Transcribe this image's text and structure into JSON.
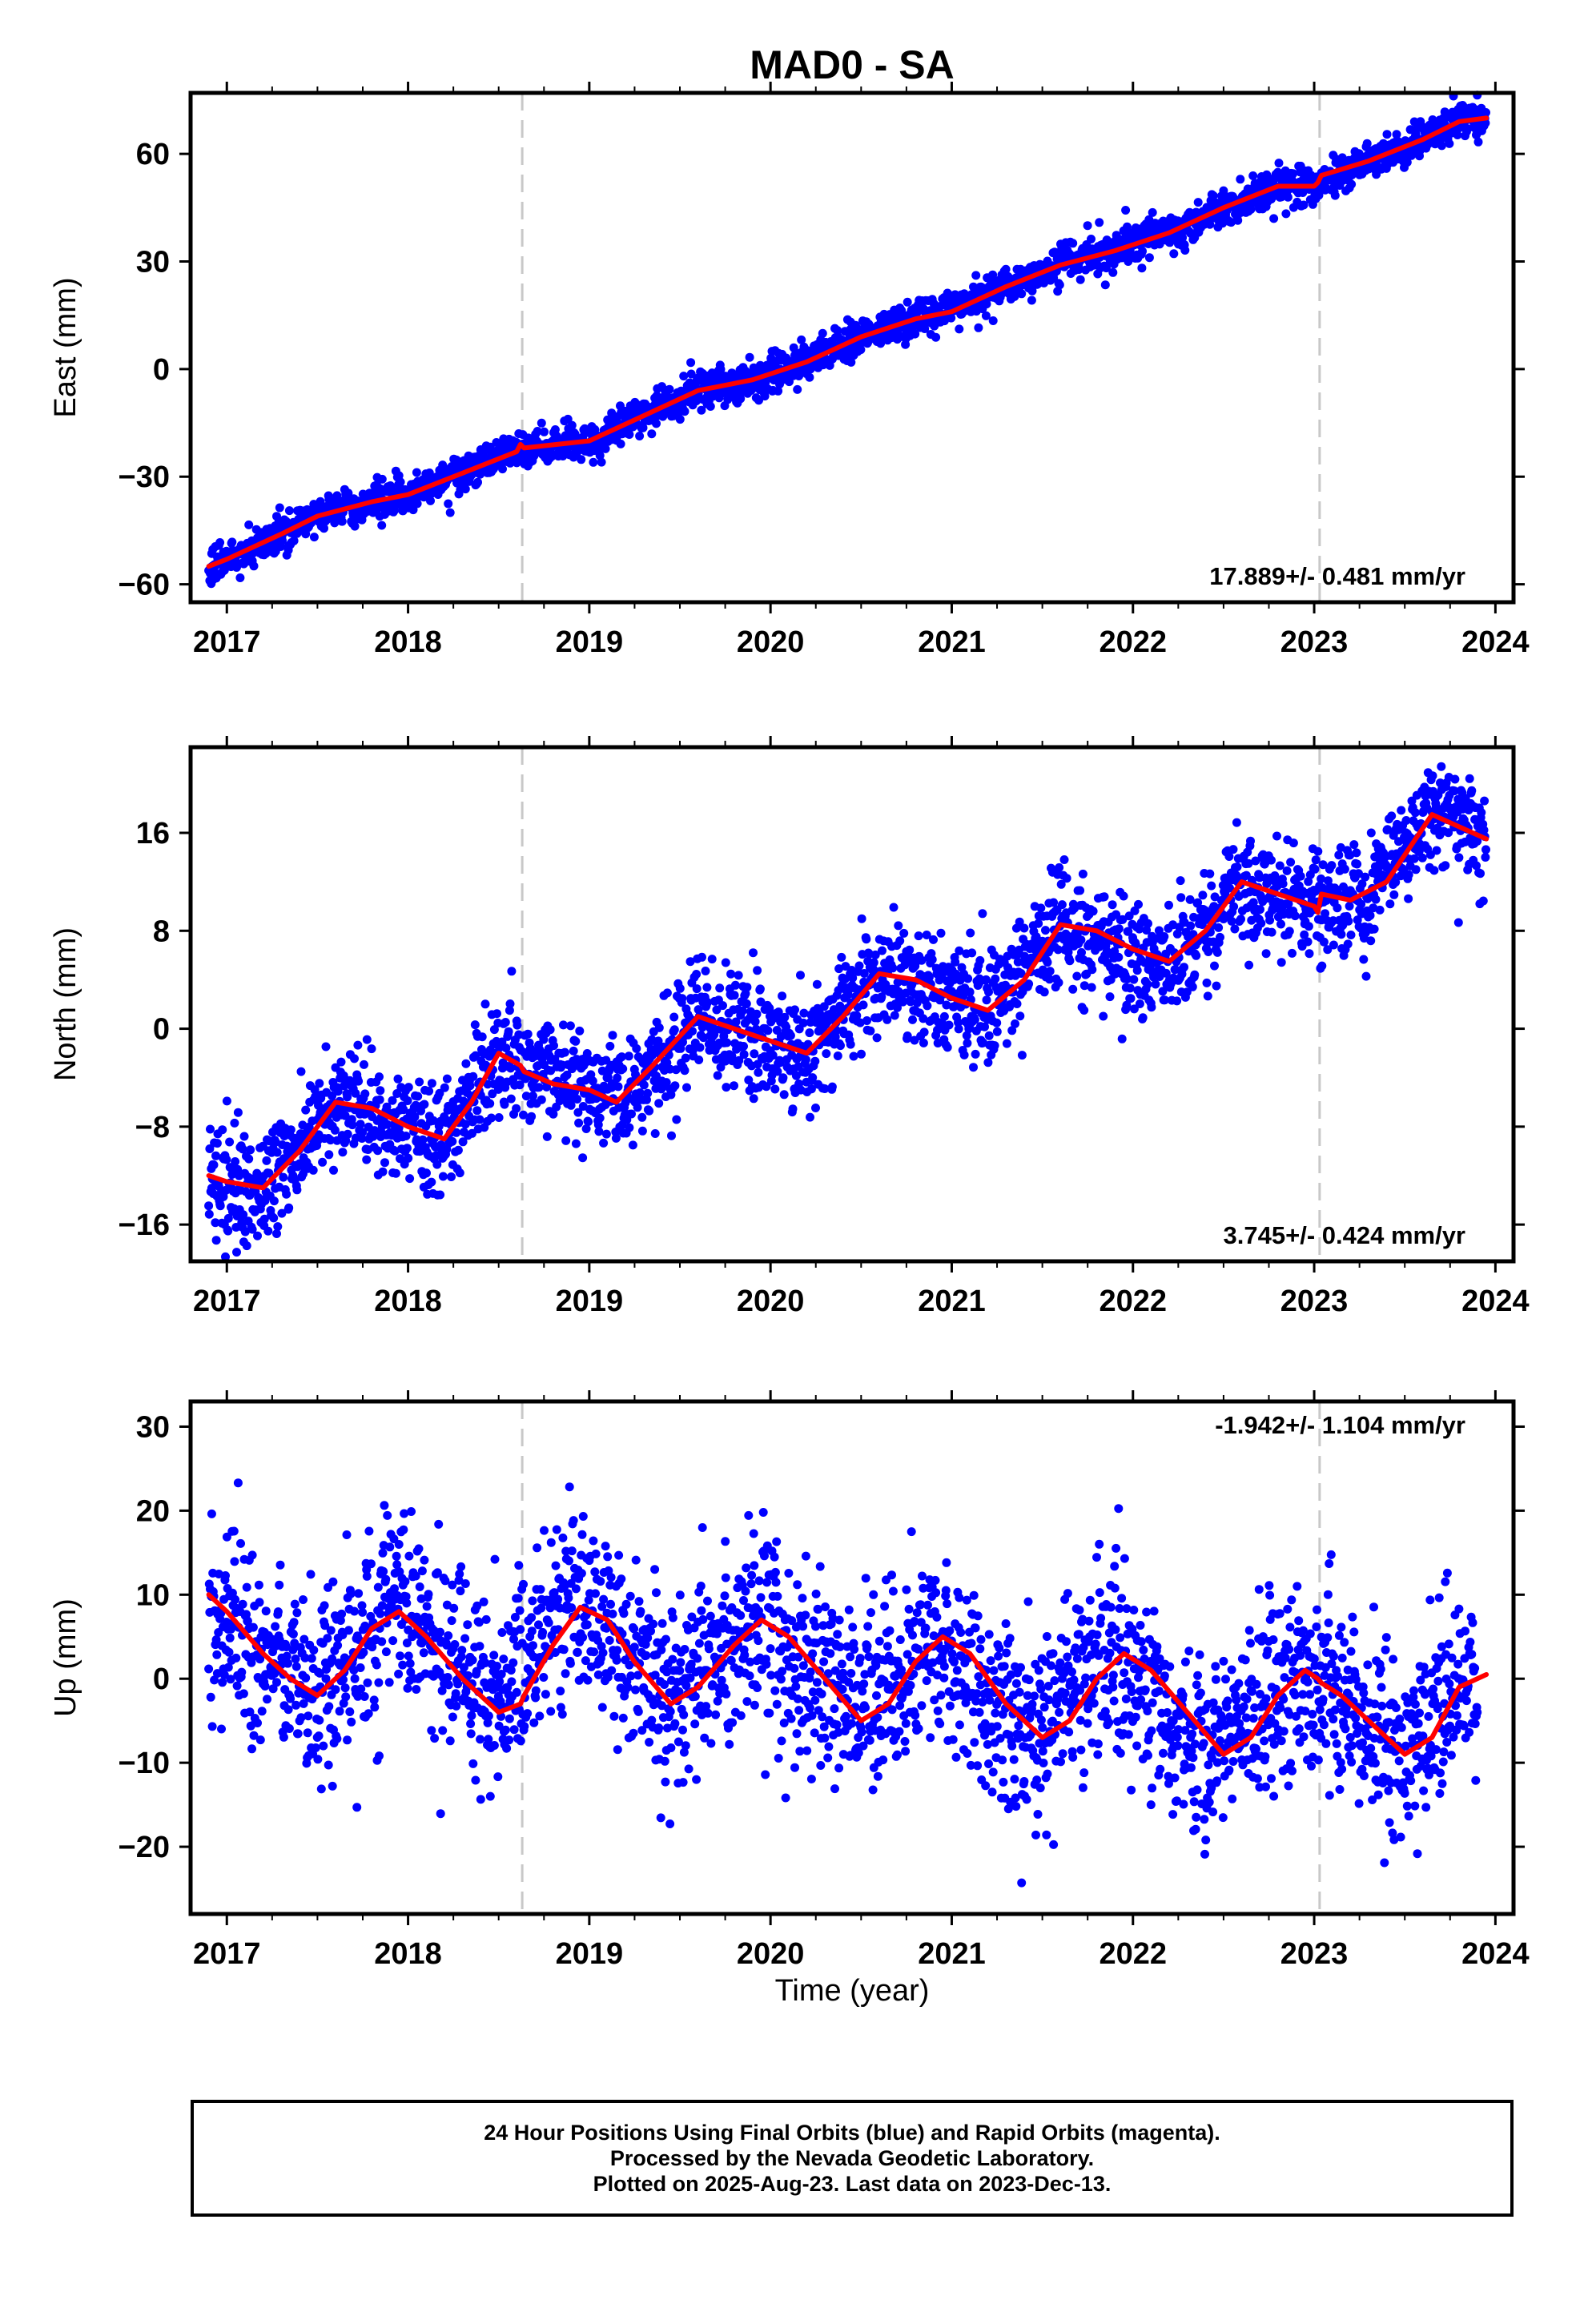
{
  "title": "MAD0 - SA",
  "colors": {
    "points": "#0000ff",
    "fit": "#ff0000",
    "dashed": "#c8c8c8",
    "axes": "#000000"
  },
  "xlabel": "Time (year)",
  "xlim": [
    2016.8,
    2024.1
  ],
  "xticks": [
    2017,
    2018,
    2019,
    2020,
    2021,
    2022,
    2023,
    2024
  ],
  "dashed_lines": [
    2018.63,
    2023.03
  ],
  "chart_data": [
    {
      "type": "scatter",
      "component": "east",
      "ylabel": "East (mm)",
      "ylim": [
        -65,
        77
      ],
      "yticks": [
        -60,
        -30,
        0,
        30,
        60
      ],
      "annotation": "17.889+/- 0.481 mm/yr",
      "annotation_pos": "bottom-right",
      "rate_mm_per_yr": 17.889,
      "rate_sigma": 0.481,
      "series": [
        {
          "name": "Final Orbits",
          "style": "points",
          "x": [
            2016.9,
            2017.0,
            2017.3,
            2017.5,
            2017.8,
            2018.0,
            2018.3,
            2018.6,
            2018.7,
            2019.0,
            2019.3,
            2019.6,
            2019.9,
            2020.2,
            2020.5,
            2020.8,
            2021.0,
            2021.3,
            2021.6,
            2021.9,
            2022.2,
            2022.5,
            2022.8,
            2023.0,
            2023.3,
            2023.6,
            2023.8,
            2023.95
          ],
          "y": [
            -55,
            -53,
            -46,
            -41,
            -37,
            -35,
            -29,
            -23,
            -22,
            -20,
            -13,
            -6,
            -3,
            2,
            9,
            14,
            17,
            23,
            29,
            33,
            38,
            45,
            51,
            51,
            58,
            64,
            69,
            70
          ],
          "scatter_sigma": 2.5
        },
        {
          "name": "Model fit",
          "style": "line",
          "x": [
            2016.9,
            2017.0,
            2017.3,
            2017.5,
            2017.8,
            2018.0,
            2018.3,
            2018.6,
            2018.62,
            2018.64,
            2019.0,
            2019.3,
            2019.6,
            2019.9,
            2020.2,
            2020.5,
            2020.8,
            2021.0,
            2021.3,
            2021.6,
            2021.9,
            2022.2,
            2022.5,
            2022.8,
            2023.0,
            2023.02,
            2023.04,
            2023.3,
            2023.6,
            2023.8,
            2023.95
          ],
          "y": [
            -55,
            -53,
            -46,
            -41,
            -37,
            -35,
            -29,
            -23,
            -21,
            -22,
            -20,
            -13,
            -6,
            -3,
            2,
            9,
            14,
            16,
            23,
            29,
            33,
            38,
            45,
            51,
            51,
            52,
            54,
            58,
            64,
            69,
            70
          ]
        }
      ]
    },
    {
      "type": "scatter",
      "component": "north",
      "ylabel": "North (mm)",
      "ylim": [
        -19,
        23
      ],
      "yticks": [
        -16,
        -8,
        0,
        8,
        16
      ],
      "annotation": "3.745+/- 0.424 mm/yr",
      "annotation_pos": "bottom-right",
      "rate_mm_per_yr": 3.745,
      "rate_sigma": 0.424,
      "series": [
        {
          "name": "Final Orbits",
          "style": "points",
          "x": [
            2016.9,
            2017.2,
            2017.6,
            2017.9,
            2018.2,
            2018.5,
            2018.8,
            2019.2,
            2019.6,
            2019.9,
            2020.2,
            2020.6,
            2020.9,
            2021.2,
            2021.6,
            2021.9,
            2022.2,
            2022.6,
            2022.9,
            2023.05,
            2023.3,
            2023.65,
            2023.95
          ],
          "y": [
            -12,
            -13,
            -6,
            -8,
            -9,
            -2,
            -4,
            -6,
            1,
            -1,
            -2,
            4.5,
            3,
            1.5,
            8.5,
            6.5,
            5,
            12,
            10,
            9.5,
            11,
            18,
            15.5
          ],
          "scatter_sigma": 2.3
        },
        {
          "name": "Model fit",
          "style": "line",
          "x": [
            2016.9,
            2017.0,
            2017.2,
            2017.4,
            2017.6,
            2017.8,
            2018.0,
            2018.2,
            2018.35,
            2018.5,
            2018.62,
            2018.64,
            2018.8,
            2019.0,
            2019.15,
            2019.35,
            2019.6,
            2019.8,
            2020.0,
            2020.2,
            2020.4,
            2020.6,
            2020.8,
            2021.0,
            2021.2,
            2021.4,
            2021.6,
            2021.8,
            2022.0,
            2022.2,
            2022.4,
            2022.6,
            2022.8,
            2023.0,
            2023.02,
            2023.04,
            2023.2,
            2023.4,
            2023.65,
            2023.8,
            2023.95
          ],
          "y": [
            -12,
            -12.5,
            -13,
            -10,
            -6,
            -6.5,
            -8,
            -9,
            -6,
            -2,
            -3,
            -3.5,
            -4.5,
            -5,
            -6,
            -3,
            1,
            0,
            -1,
            -2,
            1,
            4.5,
            4,
            2.5,
            1.5,
            4,
            8.5,
            8,
            6.5,
            5.5,
            8,
            12,
            11,
            10,
            9.5,
            11,
            10.5,
            12,
            17.5,
            16.5,
            15.5
          ]
        }
      ]
    },
    {
      "type": "scatter",
      "component": "up",
      "ylabel": "Up (mm)",
      "ylim": [
        -28,
        33
      ],
      "yticks": [
        -20,
        -10,
        0,
        10,
        20,
        30
      ],
      "annotation": "-1.942+/- 1.104 mm/yr",
      "annotation_pos": "top-right",
      "rate_mm_per_yr": -1.942,
      "rate_sigma": 1.104,
      "series": [
        {
          "name": "Final Orbits",
          "style": "points",
          "x": [
            2016.9,
            2017.2,
            2017.5,
            2017.9,
            2018.2,
            2018.5,
            2018.9,
            2019.2,
            2019.4,
            2019.9,
            2020.2,
            2020.4,
            2020.9,
            2021.2,
            2021.4,
            2021.9,
            2022.2,
            2022.4,
            2022.9,
            2023.2,
            2023.5,
            2023.9
          ],
          "y": [
            9,
            3,
            -2,
            8,
            3,
            -3,
            9,
            3,
            -3,
            7,
            2,
            -4,
            4,
            -3,
            -7,
            3,
            -3,
            -9,
            1,
            -4,
            -8,
            1
          ],
          "scatter_sigma": 5.5
        },
        {
          "name": "Model fit",
          "style": "line",
          "x": [
            2016.9,
            2017.0,
            2017.2,
            2017.35,
            2017.5,
            2017.65,
            2017.8,
            2017.95,
            2018.1,
            2018.3,
            2018.5,
            2018.62,
            2018.64,
            2018.8,
            2018.95,
            2019.1,
            2019.25,
            2019.45,
            2019.6,
            2019.8,
            2019.95,
            2020.1,
            2020.3,
            2020.5,
            2020.65,
            2020.8,
            2020.95,
            2021.1,
            2021.3,
            2021.5,
            2021.65,
            2021.8,
            2021.95,
            2022.1,
            2022.3,
            2022.5,
            2022.65,
            2022.8,
            2022.95,
            2023.02,
            2023.04,
            2023.15,
            2023.3,
            2023.5,
            2023.65,
            2023.8,
            2023.95
          ],
          "y": [
            10,
            8,
            3,
            0,
            -2,
            1,
            6,
            8,
            5,
            0,
            -4,
            -3,
            -2,
            4,
            8.5,
            7,
            2,
            -3,
            -1,
            4,
            7,
            5,
            0,
            -5,
            -3,
            2,
            5,
            3,
            -3,
            -7,
            -5,
            0,
            3,
            1,
            -4,
            -9,
            -7,
            -2,
            1,
            0,
            -0.5,
            -2,
            -5,
            -9,
            -7,
            -1,
            0.5
          ]
        }
      ]
    }
  ],
  "footer": {
    "line1": "24 Hour Positions Using Final Orbits (blue) and Rapid Orbits (magenta).",
    "line2": "Processed by the Nevada Geodetic Laboratory.",
    "line3": "Plotted on 2025-Aug-23. Last data on 2023-Dec-13."
  }
}
